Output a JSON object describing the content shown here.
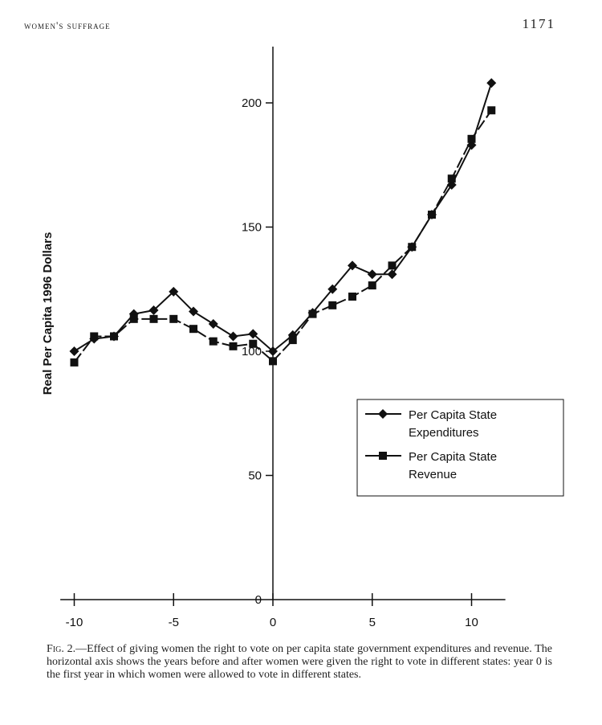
{
  "header": {
    "running_title": "WOMEN'S SUFFRAGE",
    "page_number": "1171"
  },
  "caption": {
    "label": "Fig. 2.",
    "text": "—Effect of giving women the right to vote on per capita state government expenditures and revenue. The horizontal axis shows the years before and after women were given the right to vote in different states: year 0 is the first year in which women were allowed to vote in different states."
  },
  "chart_data": {
    "type": "line",
    "title": "",
    "xlabel": "",
    "ylabel": "Real Per Capita 1996 Dollars",
    "xlim": [
      -10.5,
      11.5
    ],
    "ylim": [
      0,
      220
    ],
    "xticks": [
      -10,
      -5,
      0,
      5,
      10
    ],
    "yticks": [
      0,
      50,
      100,
      150,
      200
    ],
    "grid": false,
    "legend_position": "center-right",
    "x": [
      -10,
      -9,
      -8,
      -7,
      -6,
      -5,
      -4,
      -3,
      -2,
      -1,
      0,
      1,
      2,
      3,
      4,
      5,
      6,
      7,
      8,
      9,
      10,
      11
    ],
    "series": [
      {
        "name": "Per Capita State Expenditures",
        "marker": "diamond",
        "values": [
          100,
          105,
          106,
          115,
          116.5,
          124,
          116,
          111,
          106,
          107,
          100,
          106.5,
          115.5,
          125,
          134.5,
          131,
          131,
          142,
          155,
          167,
          183,
          208
        ]
      },
      {
        "name": "Per Capita State Revenue",
        "marker": "square",
        "values": [
          95.5,
          106,
          106,
          113,
          113,
          113,
          109,
          104,
          102,
          103,
          96,
          104.5,
          115,
          118.5,
          122,
          126.5,
          134.5,
          142,
          155,
          169.5,
          185.5,
          197
        ]
      }
    ],
    "legend_lines": [
      [
        "Per Capita State",
        "Expenditures"
      ],
      [
        "Per Capita State",
        "Revenue"
      ]
    ],
    "colors": {
      "line": "#111111"
    }
  }
}
